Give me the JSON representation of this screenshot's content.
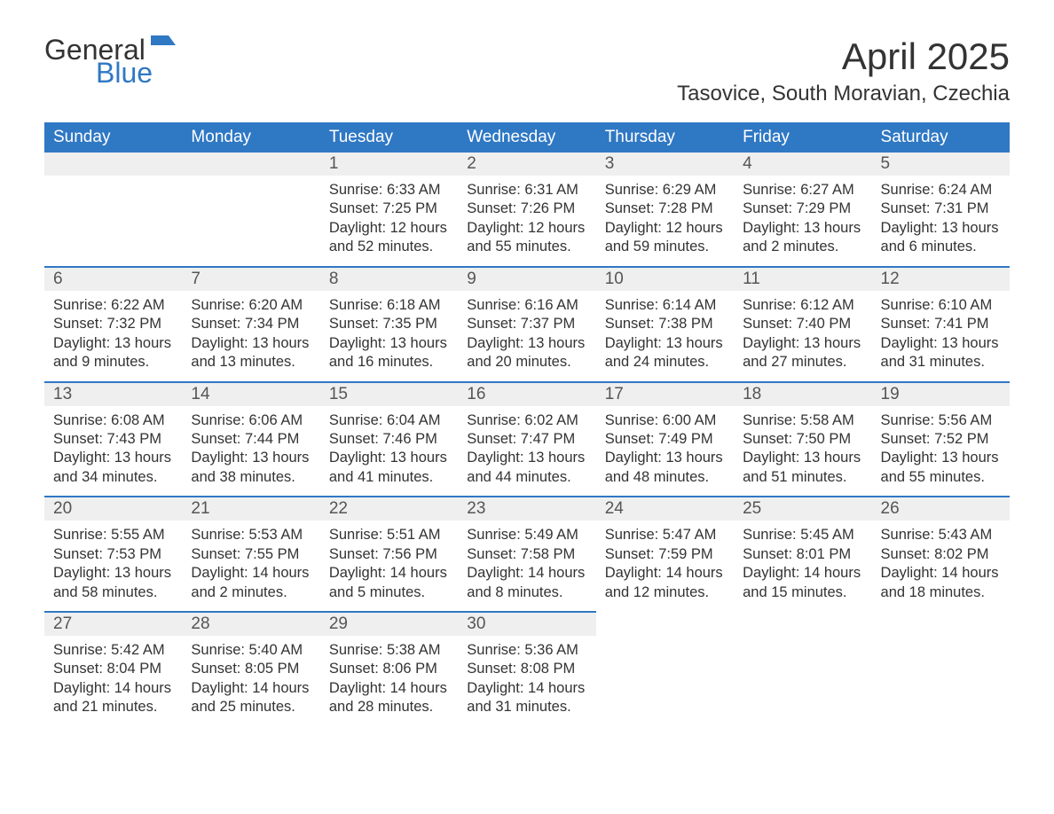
{
  "logo": {
    "word1": "General",
    "word2": "Blue",
    "flag_color": "#2f78c4",
    "text_color": "#333333"
  },
  "title": "April 2025",
  "location": "Tasovice, South Moravian, Czechia",
  "colors": {
    "header_bg": "#2f78c4",
    "header_text": "#ffffff",
    "daynum_bg": "#efefef",
    "row_border": "#2f78c4",
    "body_text": "#333333",
    "page_bg": "#ffffff"
  },
  "fonts": {
    "title_size": 42,
    "location_size": 24,
    "header_size": 19,
    "daynum_size": 19,
    "body_size": 16.5
  },
  "weekdays": [
    "Sunday",
    "Monday",
    "Tuesday",
    "Wednesday",
    "Thursday",
    "Friday",
    "Saturday"
  ],
  "weeks": [
    [
      null,
      null,
      {
        "n": "1",
        "sunrise": "6:33 AM",
        "sunset": "7:25 PM",
        "dl1": "Daylight: 12 hours",
        "dl2": "and 52 minutes."
      },
      {
        "n": "2",
        "sunrise": "6:31 AM",
        "sunset": "7:26 PM",
        "dl1": "Daylight: 12 hours",
        "dl2": "and 55 minutes."
      },
      {
        "n": "3",
        "sunrise": "6:29 AM",
        "sunset": "7:28 PM",
        "dl1": "Daylight: 12 hours",
        "dl2": "and 59 minutes."
      },
      {
        "n": "4",
        "sunrise": "6:27 AM",
        "sunset": "7:29 PM",
        "dl1": "Daylight: 13 hours",
        "dl2": "and 2 minutes."
      },
      {
        "n": "5",
        "sunrise": "6:24 AM",
        "sunset": "7:31 PM",
        "dl1": "Daylight: 13 hours",
        "dl2": "and 6 minutes."
      }
    ],
    [
      {
        "n": "6",
        "sunrise": "6:22 AM",
        "sunset": "7:32 PM",
        "dl1": "Daylight: 13 hours",
        "dl2": "and 9 minutes."
      },
      {
        "n": "7",
        "sunrise": "6:20 AM",
        "sunset": "7:34 PM",
        "dl1": "Daylight: 13 hours",
        "dl2": "and 13 minutes."
      },
      {
        "n": "8",
        "sunrise": "6:18 AM",
        "sunset": "7:35 PM",
        "dl1": "Daylight: 13 hours",
        "dl2": "and 16 minutes."
      },
      {
        "n": "9",
        "sunrise": "6:16 AM",
        "sunset": "7:37 PM",
        "dl1": "Daylight: 13 hours",
        "dl2": "and 20 minutes."
      },
      {
        "n": "10",
        "sunrise": "6:14 AM",
        "sunset": "7:38 PM",
        "dl1": "Daylight: 13 hours",
        "dl2": "and 24 minutes."
      },
      {
        "n": "11",
        "sunrise": "6:12 AM",
        "sunset": "7:40 PM",
        "dl1": "Daylight: 13 hours",
        "dl2": "and 27 minutes."
      },
      {
        "n": "12",
        "sunrise": "6:10 AM",
        "sunset": "7:41 PM",
        "dl1": "Daylight: 13 hours",
        "dl2": "and 31 minutes."
      }
    ],
    [
      {
        "n": "13",
        "sunrise": "6:08 AM",
        "sunset": "7:43 PM",
        "dl1": "Daylight: 13 hours",
        "dl2": "and 34 minutes."
      },
      {
        "n": "14",
        "sunrise": "6:06 AM",
        "sunset": "7:44 PM",
        "dl1": "Daylight: 13 hours",
        "dl2": "and 38 minutes."
      },
      {
        "n": "15",
        "sunrise": "6:04 AM",
        "sunset": "7:46 PM",
        "dl1": "Daylight: 13 hours",
        "dl2": "and 41 minutes."
      },
      {
        "n": "16",
        "sunrise": "6:02 AM",
        "sunset": "7:47 PM",
        "dl1": "Daylight: 13 hours",
        "dl2": "and 44 minutes."
      },
      {
        "n": "17",
        "sunrise": "6:00 AM",
        "sunset": "7:49 PM",
        "dl1": "Daylight: 13 hours",
        "dl2": "and 48 minutes."
      },
      {
        "n": "18",
        "sunrise": "5:58 AM",
        "sunset": "7:50 PM",
        "dl1": "Daylight: 13 hours",
        "dl2": "and 51 minutes."
      },
      {
        "n": "19",
        "sunrise": "5:56 AM",
        "sunset": "7:52 PM",
        "dl1": "Daylight: 13 hours",
        "dl2": "and 55 minutes."
      }
    ],
    [
      {
        "n": "20",
        "sunrise": "5:55 AM",
        "sunset": "7:53 PM",
        "dl1": "Daylight: 13 hours",
        "dl2": "and 58 minutes."
      },
      {
        "n": "21",
        "sunrise": "5:53 AM",
        "sunset": "7:55 PM",
        "dl1": "Daylight: 14 hours",
        "dl2": "and 2 minutes."
      },
      {
        "n": "22",
        "sunrise": "5:51 AM",
        "sunset": "7:56 PM",
        "dl1": "Daylight: 14 hours",
        "dl2": "and 5 minutes."
      },
      {
        "n": "23",
        "sunrise": "5:49 AM",
        "sunset": "7:58 PM",
        "dl1": "Daylight: 14 hours",
        "dl2": "and 8 minutes."
      },
      {
        "n": "24",
        "sunrise": "5:47 AM",
        "sunset": "7:59 PM",
        "dl1": "Daylight: 14 hours",
        "dl2": "and 12 minutes."
      },
      {
        "n": "25",
        "sunrise": "5:45 AM",
        "sunset": "8:01 PM",
        "dl1": "Daylight: 14 hours",
        "dl2": "and 15 minutes."
      },
      {
        "n": "26",
        "sunrise": "5:43 AM",
        "sunset": "8:02 PM",
        "dl1": "Daylight: 14 hours",
        "dl2": "and 18 minutes."
      }
    ],
    [
      {
        "n": "27",
        "sunrise": "5:42 AM",
        "sunset": "8:04 PM",
        "dl1": "Daylight: 14 hours",
        "dl2": "and 21 minutes."
      },
      {
        "n": "28",
        "sunrise": "5:40 AM",
        "sunset": "8:05 PM",
        "dl1": "Daylight: 14 hours",
        "dl2": "and 25 minutes."
      },
      {
        "n": "29",
        "sunrise": "5:38 AM",
        "sunset": "8:06 PM",
        "dl1": "Daylight: 14 hours",
        "dl2": "and 28 minutes."
      },
      {
        "n": "30",
        "sunrise": "5:36 AM",
        "sunset": "8:08 PM",
        "dl1": "Daylight: 14 hours",
        "dl2": "and 31 minutes."
      },
      null,
      null,
      null
    ]
  ],
  "labels": {
    "sunrise": "Sunrise: ",
    "sunset": "Sunset: "
  }
}
